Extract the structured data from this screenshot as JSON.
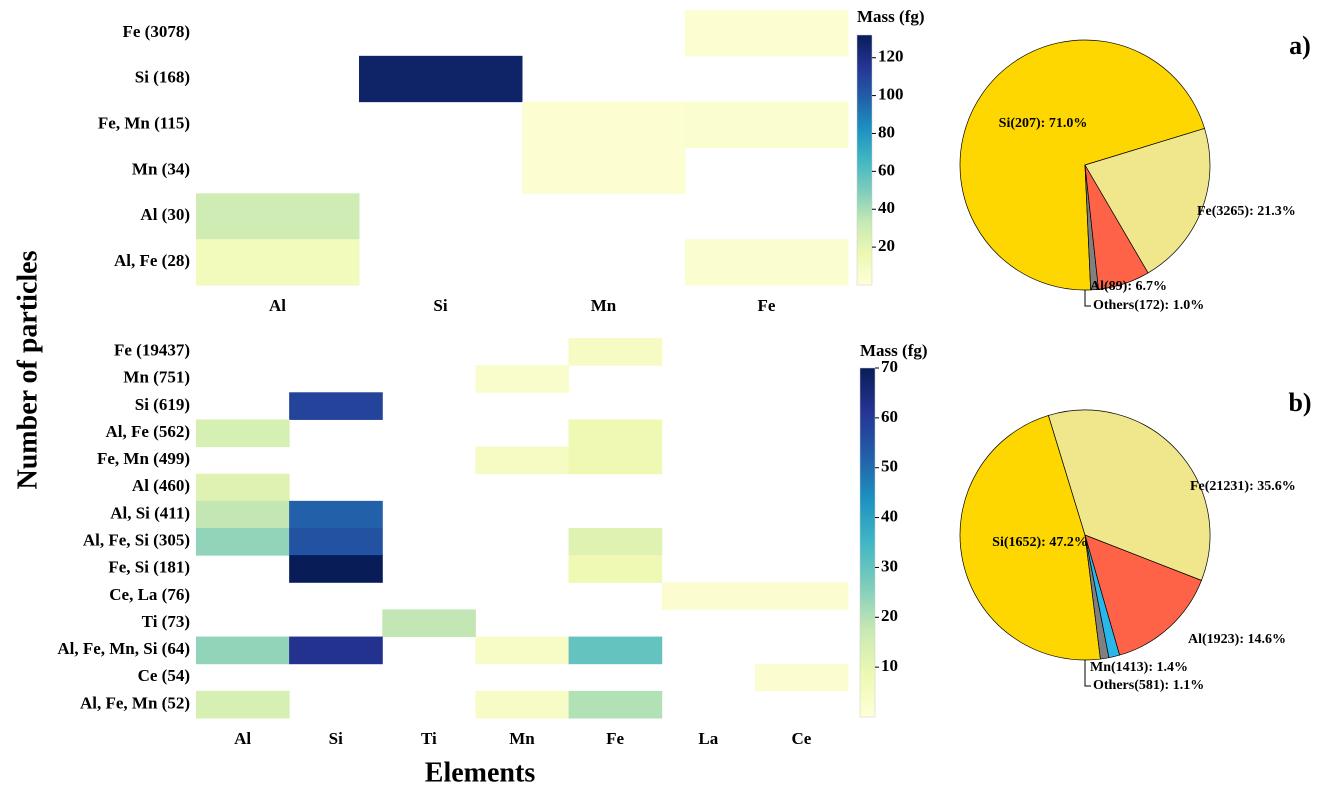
{
  "chart_data": [
    {
      "type": "heatmap",
      "ylabel": "Number of particles",
      "rows": [
        "Fe (3078)",
        "Si (168)",
        "Fe, Mn (115)",
        "Mn (34)",
        "Al (30)",
        "Al, Fe (28)"
      ],
      "categories": [
        "Al",
        "Si",
        "Mn",
        "Fe"
      ],
      "values": [
        [
          null,
          null,
          null,
          3
        ],
        [
          null,
          128,
          null,
          null
        ],
        [
          null,
          null,
          3,
          5
        ],
        [
          null,
          null,
          3,
          null
        ],
        [
          30,
          null,
          null,
          null
        ],
        [
          12,
          null,
          null,
          5
        ]
      ],
      "colormap": "YlGnBu",
      "colorbar_label": "Mass (fg)",
      "vlim": [
        0,
        132
      ],
      "vticks": [
        20,
        40,
        60,
        80,
        100,
        120
      ]
    },
    {
      "type": "heatmap",
      "xlabel": "Elements",
      "rows": [
        "Fe (19437)",
        "Mn (751)",
        "Si (619)",
        "Al, Fe (562)",
        "Fe, Mn (499)",
        "Al (460)",
        "Al, Si (411)",
        "Al, Fe, Si (305)",
        "Fe, Si (181)",
        "Ce, La (76)",
        "Ti (73)",
        "Al, Fe, Mn, Si (64)",
        "Ce (54)",
        "Al, Fe, Mn (52)"
      ],
      "categories": [
        "Al",
        "Si",
        "Ti",
        "Mn",
        "Fe",
        "La",
        "Ce"
      ],
      "values": [
        [
          null,
          null,
          null,
          null,
          5,
          null,
          null
        ],
        [
          null,
          null,
          null,
          3,
          null,
          null,
          null
        ],
        [
          null,
          58,
          null,
          null,
          null,
          null,
          null
        ],
        [
          14,
          null,
          null,
          null,
          8,
          null,
          null
        ],
        [
          null,
          null,
          null,
          5,
          8,
          null,
          null
        ],
        [
          12,
          null,
          null,
          null,
          null,
          null,
          null
        ],
        [
          18,
          52,
          null,
          null,
          null,
          null,
          null
        ],
        [
          24,
          55,
          null,
          null,
          12,
          null,
          null
        ],
        [
          null,
          70,
          null,
          null,
          8,
          null,
          null
        ],
        [
          null,
          null,
          null,
          null,
          null,
          2,
          2
        ],
        [
          null,
          null,
          18,
          null,
          null,
          null,
          null
        ],
        [
          24,
          62,
          null,
          4,
          30,
          null,
          null
        ],
        [
          null,
          null,
          null,
          null,
          null,
          null,
          2
        ],
        [
          14,
          null,
          null,
          4,
          20,
          null,
          null
        ]
      ],
      "colormap": "YlGnBu",
      "colorbar_label": "Mass (fg)",
      "vlim": [
        0,
        70
      ],
      "vticks": [
        10,
        20,
        30,
        40,
        50,
        60,
        70
      ]
    },
    {
      "type": "pie",
      "title": "a)",
      "startangle": 17,
      "labels": [
        "Si(207): 71.0%",
        "Others(172): 1.0%",
        "Al(89): 6.7%",
        "Fe(3265): 21.3%"
      ],
      "values": [
        71.0,
        1.0,
        6.7,
        21.3
      ],
      "colors": [
        "#ffd700",
        "#808080",
        "#ff6347",
        "#f0e68c"
      ]
    },
    {
      "type": "pie",
      "title": "b)",
      "startangle": 107,
      "labels": [
        "Si(1652): 47.2%",
        "Others(581): 1.1%",
        "Mn(1413): 1.4%",
        "Al(1923): 14.6%",
        "Fe(21231): 35.6%"
      ],
      "values": [
        47.2,
        1.1,
        1.4,
        14.6,
        35.6
      ],
      "colors": [
        "#ffd700",
        "#808080",
        "#29b6e8",
        "#ff6347",
        "#f0e68c"
      ]
    }
  ]
}
